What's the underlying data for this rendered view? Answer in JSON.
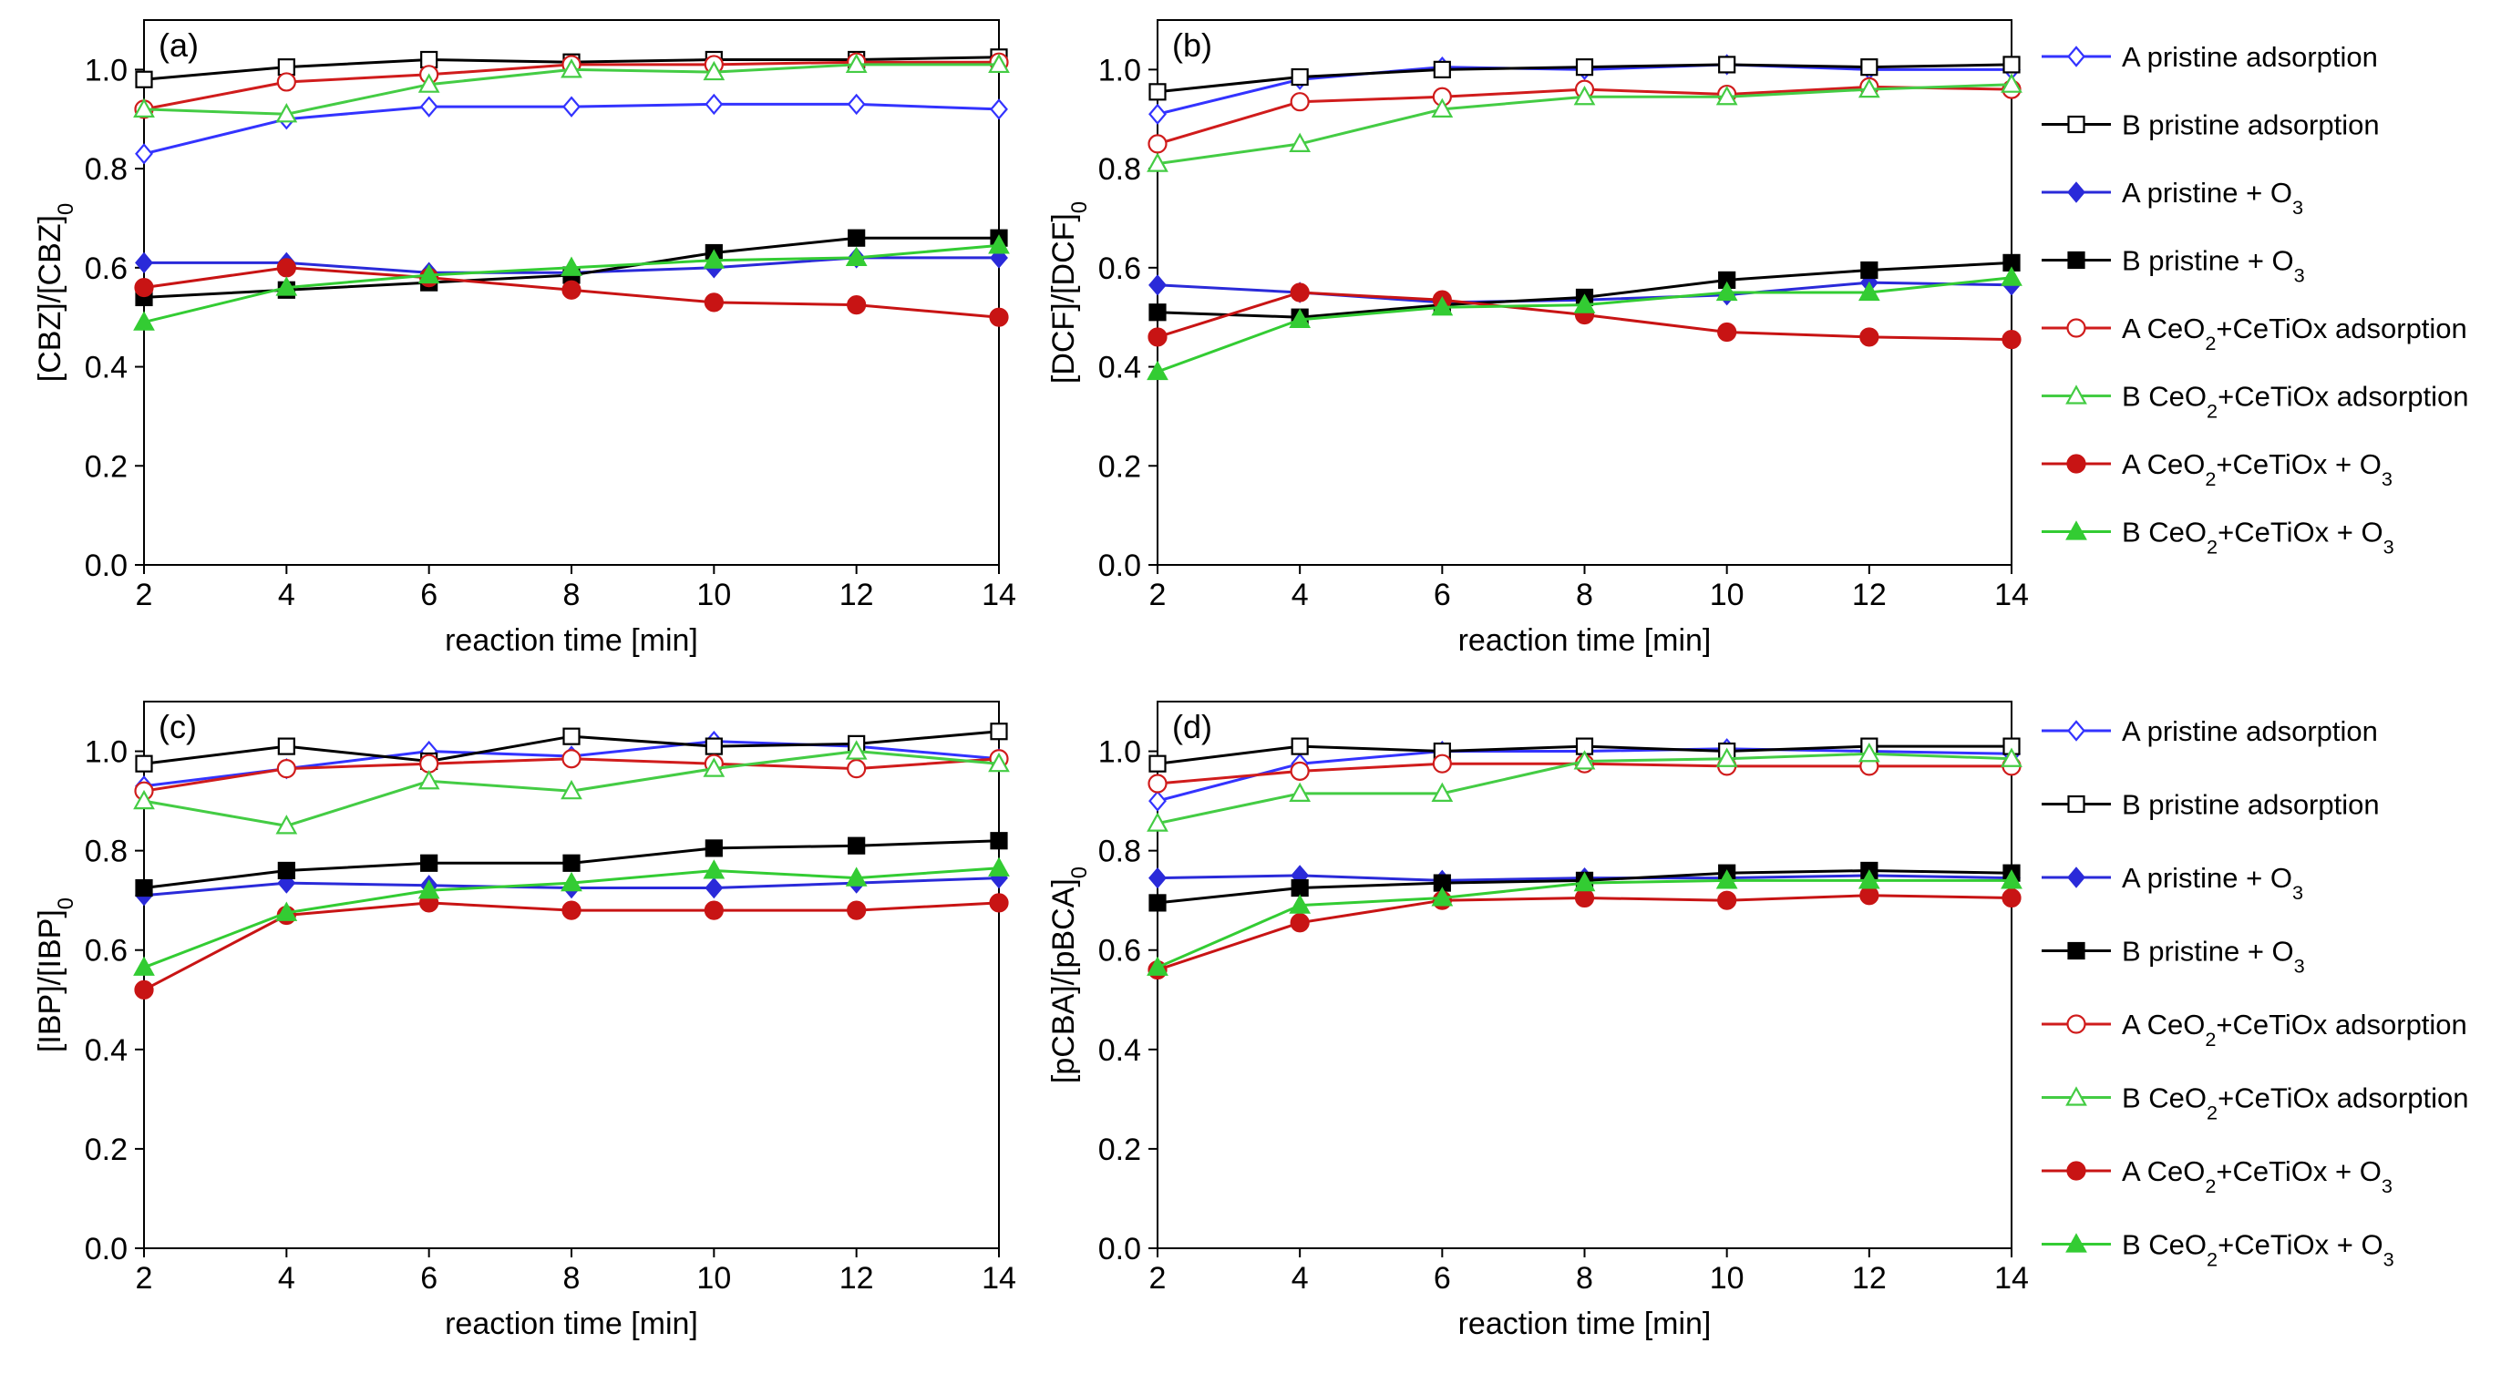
{
  "series_styles": [
    {
      "key": "A_pristine_ads",
      "color": "#3333ff",
      "marker": "diamond",
      "filled": false
    },
    {
      "key": "B_pristine_ads",
      "color": "#000000",
      "marker": "square",
      "filled": false
    },
    {
      "key": "A_pristine_O3",
      "color": "#2a2ad9",
      "marker": "diamond",
      "filled": true
    },
    {
      "key": "B_pristine_O3",
      "color": "#000000",
      "marker": "square",
      "filled": true
    },
    {
      "key": "A_ceo2_ads",
      "color": "#d01c1c",
      "marker": "circle",
      "filled": false
    },
    {
      "key": "B_ceo2_ads",
      "color": "#44cc44",
      "marker": "triangle",
      "filled": false
    },
    {
      "key": "A_ceo2_O3",
      "color": "#c81414",
      "marker": "circle",
      "filled": true
    },
    {
      "key": "B_ceo2_O3",
      "color": "#33cc33",
      "marker": "triangle",
      "filled": true
    }
  ],
  "legend": [
    [
      {
        "t": "A pristine adsorption"
      }
    ],
    [
      {
        "t": "B pristine adsorption"
      }
    ],
    [
      {
        "t": "A pristine + O"
      },
      {
        "t": "3",
        "sub": true
      }
    ],
    [
      {
        "t": "B pristine + O"
      },
      {
        "t": "3",
        "sub": true
      }
    ],
    [
      {
        "t": "A CeO"
      },
      {
        "t": "2",
        "sub": true
      },
      {
        "t": "+CeTiOx adsorption"
      }
    ],
    [
      {
        "t": "B CeO"
      },
      {
        "t": "2",
        "sub": true
      },
      {
        "t": "+CeTiOx adsorption"
      }
    ],
    [
      {
        "t": "A CeO"
      },
      {
        "t": "2",
        "sub": true
      },
      {
        "t": "+CeTiOx + O"
      },
      {
        "t": "3",
        "sub": true
      }
    ],
    [
      {
        "t": "B CeO"
      },
      {
        "t": "2",
        "sub": true
      },
      {
        "t": "+CeTiOx + O"
      },
      {
        "t": "3",
        "sub": true
      }
    ]
  ],
  "chart_data": [
    {
      "type": "line",
      "panel_label": "(a)",
      "xlabel": "reaction time [min]",
      "ylabel": [
        {
          "t": "[CBZ]/[CBZ]"
        },
        {
          "t": "0",
          "sub": true
        }
      ],
      "x": [
        2,
        4,
        6,
        8,
        10,
        12,
        14
      ],
      "xlim": [
        2,
        14
      ],
      "xticks": [
        "2",
        "4",
        "6",
        "8",
        "10",
        "12",
        "14"
      ],
      "ylim": [
        0,
        1.1
      ],
      "yticks": [
        "0.0",
        "0.2",
        "0.4",
        "0.6",
        "0.8",
        "1.0"
      ],
      "series": [
        {
          "name": "A pristine adsorption",
          "values": [
            0.83,
            0.9,
            0.925,
            0.925,
            0.93,
            0.93,
            0.92
          ]
        },
        {
          "name": "B pristine adsorption",
          "values": [
            0.98,
            1.005,
            1.02,
            1.015,
            1.02,
            1.02,
            1.025
          ]
        },
        {
          "name": "A pristine + O3",
          "values": [
            0.61,
            0.61,
            0.59,
            0.59,
            0.6,
            0.62,
            0.62
          ]
        },
        {
          "name": "B pristine + O3",
          "values": [
            0.54,
            0.555,
            0.57,
            0.585,
            0.63,
            0.66,
            0.66
          ]
        },
        {
          "name": "A CeO2+CeTiOx adsorption",
          "values": [
            0.92,
            0.975,
            0.99,
            1.01,
            1.01,
            1.015,
            1.015
          ]
        },
        {
          "name": "B CeO2+CeTiOx adsorption",
          "values": [
            0.92,
            0.91,
            0.97,
            1.0,
            0.995,
            1.01,
            1.01
          ]
        },
        {
          "name": "A CeO2+CeTiOx + O3",
          "values": [
            0.56,
            0.6,
            0.58,
            0.555,
            0.53,
            0.525,
            0.5
          ]
        },
        {
          "name": "B CeO2+CeTiOx + O3",
          "values": [
            0.49,
            0.56,
            0.585,
            0.6,
            0.615,
            0.62,
            0.645
          ]
        }
      ]
    },
    {
      "type": "line",
      "panel_label": "(b)",
      "xlabel": "reaction time [min]",
      "ylabel": [
        {
          "t": "[DCF]/[DCF]"
        },
        {
          "t": "0",
          "sub": true
        }
      ],
      "x": [
        2,
        4,
        6,
        8,
        10,
        12,
        14
      ],
      "xlim": [
        2,
        14
      ],
      "xticks": [
        "2",
        "4",
        "6",
        "8",
        "10",
        "12",
        "14"
      ],
      "ylim": [
        0,
        1.1
      ],
      "yticks": [
        "0.0",
        "0.2",
        "0.4",
        "0.6",
        "0.8",
        "1.0"
      ],
      "series": [
        {
          "name": "A pristine adsorption",
          "values": [
            0.91,
            0.98,
            1.005,
            1.0,
            1.01,
            1.0,
            1.0
          ]
        },
        {
          "name": "B pristine adsorption",
          "values": [
            0.955,
            0.985,
            1.0,
            1.005,
            1.01,
            1.005,
            1.01
          ]
        },
        {
          "name": "A pristine + O3",
          "values": [
            0.565,
            0.55,
            0.53,
            0.535,
            0.545,
            0.57,
            0.565
          ]
        },
        {
          "name": "B pristine + O3",
          "values": [
            0.51,
            0.5,
            0.525,
            0.54,
            0.575,
            0.595,
            0.61
          ]
        },
        {
          "name": "A CeO2+CeTiOx adsorption",
          "values": [
            0.85,
            0.935,
            0.945,
            0.96,
            0.95,
            0.965,
            0.96
          ]
        },
        {
          "name": "B CeO2+CeTiOx adsorption",
          "values": [
            0.81,
            0.85,
            0.92,
            0.945,
            0.945,
            0.96,
            0.97
          ]
        },
        {
          "name": "A CeO2+CeTiOx + O3",
          "values": [
            0.46,
            0.55,
            0.535,
            0.505,
            0.47,
            0.46,
            0.455
          ]
        },
        {
          "name": "B CeO2+CeTiOx + O3",
          "values": [
            0.39,
            0.495,
            0.52,
            0.525,
            0.55,
            0.55,
            0.58
          ]
        }
      ]
    },
    {
      "type": "line",
      "panel_label": "(c)",
      "xlabel": "reaction time [min]",
      "ylabel": [
        {
          "t": "[IBP]/[IBP]"
        },
        {
          "t": "0",
          "sub": true
        }
      ],
      "x": [
        2,
        4,
        6,
        8,
        10,
        12,
        14
      ],
      "xlim": [
        2,
        14
      ],
      "xticks": [
        "2",
        "4",
        "6",
        "8",
        "10",
        "12",
        "14"
      ],
      "ylim": [
        0,
        1.1
      ],
      "yticks": [
        "0.0",
        "0.2",
        "0.4",
        "0.6",
        "0.8",
        "1.0"
      ],
      "series": [
        {
          "name": "A pristine adsorption",
          "values": [
            0.93,
            0.965,
            1.0,
            0.99,
            1.02,
            1.01,
            0.985
          ]
        },
        {
          "name": "B pristine adsorption",
          "values": [
            0.975,
            1.01,
            0.98,
            1.03,
            1.01,
            1.015,
            1.04
          ]
        },
        {
          "name": "A pristine + O3",
          "values": [
            0.71,
            0.735,
            0.73,
            0.725,
            0.725,
            0.735,
            0.745
          ]
        },
        {
          "name": "B pristine + O3",
          "values": [
            0.725,
            0.76,
            0.775,
            0.775,
            0.805,
            0.81,
            0.82
          ]
        },
        {
          "name": "A CeO2+CeTiOx adsorption",
          "values": [
            0.92,
            0.965,
            0.975,
            0.985,
            0.975,
            0.965,
            0.985
          ]
        },
        {
          "name": "B CeO2+CeTiOx adsorption",
          "values": [
            0.9,
            0.85,
            0.94,
            0.92,
            0.965,
            1.0,
            0.975
          ]
        },
        {
          "name": "A CeO2+CeTiOx + O3",
          "values": [
            0.52,
            0.67,
            0.695,
            0.68,
            0.68,
            0.68,
            0.695
          ]
        },
        {
          "name": "B CeO2+CeTiOx + O3",
          "values": [
            0.565,
            0.675,
            0.72,
            0.735,
            0.76,
            0.745,
            0.765
          ]
        }
      ]
    },
    {
      "type": "line",
      "panel_label": "(d)",
      "xlabel": "reaction time [min]",
      "ylabel": [
        {
          "t": "[pCBA]/[pBCA]"
        },
        {
          "t": "0",
          "sub": true
        }
      ],
      "x": [
        2,
        4,
        6,
        8,
        10,
        12,
        14
      ],
      "xlim": [
        2,
        14
      ],
      "xticks": [
        "2",
        "4",
        "6",
        "8",
        "10",
        "12",
        "14"
      ],
      "ylim": [
        0,
        1.1
      ],
      "yticks": [
        "0.0",
        "0.2",
        "0.4",
        "0.6",
        "0.8",
        "1.0"
      ],
      "series": [
        {
          "name": "A pristine adsorption",
          "values": [
            0.9,
            0.975,
            1.0,
            1.0,
            1.005,
            1.0,
            0.995
          ]
        },
        {
          "name": "B pristine adsorption",
          "values": [
            0.975,
            1.01,
            1.0,
            1.01,
            1.0,
            1.01,
            1.01
          ]
        },
        {
          "name": "A pristine + O3",
          "values": [
            0.745,
            0.75,
            0.74,
            0.745,
            0.745,
            0.75,
            0.745
          ]
        },
        {
          "name": "B pristine + O3",
          "values": [
            0.695,
            0.725,
            0.735,
            0.74,
            0.755,
            0.76,
            0.755
          ]
        },
        {
          "name": "A CeO2+CeTiOx adsorption",
          "values": [
            0.935,
            0.96,
            0.975,
            0.975,
            0.97,
            0.97,
            0.97
          ]
        },
        {
          "name": "B CeO2+CeTiOx adsorption",
          "values": [
            0.855,
            0.915,
            0.915,
            0.98,
            0.985,
            0.995,
            0.985
          ]
        },
        {
          "name": "A CeO2+CeTiOx + O3",
          "values": [
            0.56,
            0.655,
            0.7,
            0.705,
            0.7,
            0.71,
            0.705
          ]
        },
        {
          "name": "B CeO2+CeTiOx + O3",
          "values": [
            0.565,
            0.69,
            0.705,
            0.735,
            0.74,
            0.74,
            0.74
          ]
        }
      ]
    }
  ]
}
